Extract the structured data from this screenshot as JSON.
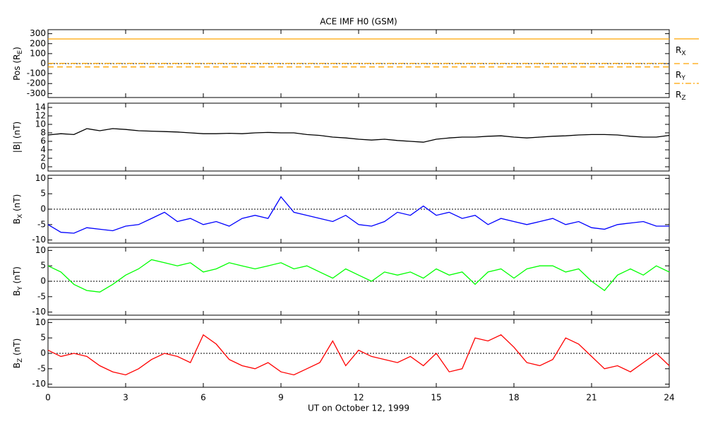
{
  "chart_data": [
    {
      "type": "line",
      "title": "ACE IMF H0 (GSM)",
      "ylabel": [
        "Pos (R",
        "E",
        ")"
      ],
      "x": [
        0,
        24
      ],
      "xlim": [
        0,
        24
      ],
      "ylim": [
        -340,
        340
      ],
      "yticks": [
        -300,
        -200,
        -100,
        0,
        100,
        200,
        300
      ],
      "zero_line": true,
      "series": [
        {
          "name": [
            "R",
            "X"
          ],
          "color": "#ffa500",
          "dash": "solid",
          "values": [
            247,
            247
          ]
        },
        {
          "name": [
            "R",
            "Y"
          ],
          "color": "#ffa500",
          "dash": "dashed",
          "values": [
            -33,
            -33
          ]
        },
        {
          "name": [
            "R",
            "Z"
          ],
          "color": "#ffa500",
          "dash": "dashdot",
          "values": [
            3,
            3
          ]
        }
      ]
    },
    {
      "type": "line",
      "ylabel": [
        "|B| (nT)"
      ],
      "x": [
        0,
        0.5,
        1,
        1.5,
        2,
        2.5,
        3,
        3.5,
        4,
        4.5,
        5,
        5.5,
        6,
        6.5,
        7,
        7.5,
        8,
        8.5,
        9,
        9.5,
        10,
        10.5,
        11,
        11.5,
        12,
        12.5,
        13,
        13.5,
        14,
        14.5,
        15,
        15.5,
        16,
        16.5,
        17,
        17.5,
        18,
        18.5,
        19,
        19.5,
        20,
        20.5,
        21,
        21.5,
        22,
        22.5,
        23,
        23.5,
        24
      ],
      "xlim": [
        0,
        24
      ],
      "ylim": [
        -1,
        15
      ],
      "yticks": [
        0,
        2,
        4,
        6,
        8,
        10,
        12,
        14
      ],
      "zero_line": false,
      "series": [
        {
          "name": [
            "|B|"
          ],
          "color": "#000000",
          "dash": "solid",
          "values": [
            7.5,
            7.8,
            7.6,
            9,
            8.5,
            9,
            8.8,
            8.5,
            8.4,
            8.3,
            8.2,
            8,
            7.8,
            7.8,
            7.9,
            7.8,
            8,
            8.1,
            8,
            8,
            7.6,
            7.4,
            7,
            6.8,
            6.5,
            6.3,
            6.5,
            6.2,
            6,
            5.8,
            6.5,
            6.8,
            7,
            7,
            7.2,
            7.3,
            7,
            6.8,
            7,
            7.2,
            7.3,
            7.5,
            7.6,
            7.6,
            7.5,
            7.2,
            7,
            7,
            7.4
          ]
        }
      ]
    },
    {
      "type": "line",
      "ylabel": [
        "B",
        "X",
        " (nT)"
      ],
      "x": [
        0,
        0.5,
        1,
        1.5,
        2,
        2.5,
        3,
        3.5,
        4,
        4.5,
        5,
        5.5,
        6,
        6.5,
        7,
        7.5,
        8,
        8.5,
        9,
        9.5,
        10,
        10.5,
        11,
        11.5,
        12,
        12.5,
        13,
        13.5,
        14,
        14.5,
        15,
        15.5,
        16,
        16.5,
        17,
        17.5,
        18,
        18.5,
        19,
        19.5,
        20,
        20.5,
        21,
        21.5,
        22,
        22.5,
        23,
        23.5,
        24
      ],
      "xlim": [
        0,
        24
      ],
      "ylim": [
        -11,
        11
      ],
      "yticks": [
        -10,
        -5,
        0,
        5,
        10
      ],
      "zero_line": true,
      "series": [
        {
          "name": [
            "B",
            "X"
          ],
          "color": "#0000ff",
          "dash": "solid",
          "values": [
            -5,
            -7.5,
            -7.8,
            -6,
            -6.5,
            -7,
            -5.5,
            -5,
            -3,
            -1,
            -4,
            -3,
            -5,
            -4,
            -5.5,
            -3,
            -2,
            -3,
            4,
            -1,
            -2,
            -3,
            -4,
            -2,
            -5,
            -5.5,
            -4,
            -1,
            -2,
            1,
            -2,
            -1,
            -3,
            -2,
            -5,
            -3,
            -4,
            -5,
            -4,
            -3,
            -5,
            -4,
            -6,
            -6.5,
            -5,
            -4.5,
            -4,
            -5.5,
            -5.5
          ]
        }
      ]
    },
    {
      "type": "line",
      "ylabel": [
        "B",
        "Y",
        " (nT)"
      ],
      "x": [
        0,
        0.5,
        1,
        1.5,
        2,
        2.5,
        3,
        3.5,
        4,
        4.5,
        5,
        5.5,
        6,
        6.5,
        7,
        7.5,
        8,
        8.5,
        9,
        9.5,
        10,
        10.5,
        11,
        11.5,
        12,
        12.5,
        13,
        13.5,
        14,
        14.5,
        15,
        15.5,
        16,
        16.5,
        17,
        17.5,
        18,
        18.5,
        19,
        19.5,
        20,
        20.5,
        21,
        21.5,
        22,
        22.5,
        23,
        23.5,
        24
      ],
      "xlim": [
        0,
        24
      ],
      "ylim": [
        -11,
        11
      ],
      "yticks": [
        -10,
        -5,
        0,
        5,
        10
      ],
      "zero_line": true,
      "series": [
        {
          "name": [
            "B",
            "Y"
          ],
          "color": "#00ff00",
          "dash": "solid",
          "values": [
            5,
            3,
            -1,
            -3,
            -3.5,
            -1,
            2,
            4,
            7,
            6,
            5,
            6,
            3,
            4,
            6,
            5,
            4,
            5,
            6,
            4,
            5,
            3,
            1,
            4,
            2,
            0,
            3,
            2,
            3,
            1,
            4,
            2,
            3,
            -1,
            3,
            4,
            1,
            4,
            5,
            5,
            3,
            4,
            0,
            -3,
            2,
            4,
            2,
            5,
            3
          ]
        }
      ]
    },
    {
      "type": "line",
      "ylabel": [
        "B",
        "Z",
        " (nT)"
      ],
      "xlabel": "UT on October 12, 1999",
      "x": [
        0,
        0.5,
        1,
        1.5,
        2,
        2.5,
        3,
        3.5,
        4,
        4.5,
        5,
        5.5,
        6,
        6.5,
        7,
        7.5,
        8,
        8.5,
        9,
        9.5,
        10,
        10.5,
        11,
        11.5,
        12,
        12.5,
        13,
        13.5,
        14,
        14.5,
        15,
        15.5,
        16,
        16.5,
        17,
        17.5,
        18,
        18.5,
        19,
        19.5,
        20,
        20.5,
        21,
        21.5,
        22,
        22.5,
        23,
        23.5,
        24
      ],
      "xlim": [
        0,
        24
      ],
      "xticks": [
        0,
        3,
        6,
        9,
        12,
        15,
        18,
        21,
        24
      ],
      "ylim": [
        -11,
        11
      ],
      "yticks": [
        -10,
        -5,
        0,
        5,
        10
      ],
      "zero_line": true,
      "series": [
        {
          "name": [
            "B",
            "Z"
          ],
          "color": "#ff0000",
          "dash": "solid",
          "values": [
            1,
            -1,
            0,
            -1,
            -4,
            -6,
            -7,
            -5,
            -2,
            0,
            -1,
            -3,
            6,
            3,
            -2,
            -4,
            -5,
            -3,
            -6,
            -7,
            -5,
            -3,
            4,
            -4,
            1,
            -1,
            -2,
            -3,
            -1,
            -4,
            0,
            -6,
            -5,
            5,
            4,
            6,
            2,
            -3,
            -4,
            -2,
            5,
            3,
            -1,
            -5,
            -4,
            -6,
            -3,
            0,
            -4
          ]
        }
      ]
    }
  ]
}
